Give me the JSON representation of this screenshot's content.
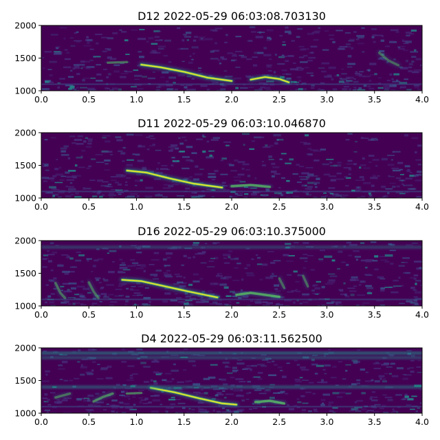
{
  "colors": {
    "background": "#440154",
    "low": "#472d7b",
    "mid": "#3b528b",
    "teal": "#21918c",
    "green": "#5ec962",
    "yellow": "#fde725"
  },
  "chart_data": [
    {
      "type": "heatmap",
      "subtype": "spectrogram",
      "title": "D12 2022-05-29 06:03:08.703130",
      "xlim": [
        0.0,
        4.0
      ],
      "ylim": [
        1000,
        2000
      ],
      "x_ticks": [
        "0.0",
        "0.5",
        "1.0",
        "1.5",
        "2.0",
        "2.5",
        "3.0",
        "3.5",
        "4.0"
      ],
      "y_ticks": [
        "1000",
        "1500",
        "2000"
      ],
      "colormap": "viridis",
      "features": [
        {
          "kind": "sweep",
          "points": [
            [
              1.05,
              1400
            ],
            [
              1.25,
              1360
            ],
            [
              1.5,
              1290
            ],
            [
              1.75,
              1200
            ],
            [
              2.0,
              1150
            ]
          ],
          "intensity": 0.95
        },
        {
          "kind": "sweep",
          "points": [
            [
              2.2,
              1170
            ],
            [
              2.35,
              1210
            ],
            [
              2.5,
              1180
            ],
            [
              2.6,
              1130
            ]
          ],
          "intensity": 0.9
        },
        {
          "kind": "sweep",
          "points": [
            [
              0.7,
              1430
            ],
            [
              0.9,
              1440
            ]
          ],
          "intensity": 0.5
        },
        {
          "kind": "sweep",
          "points": [
            [
              3.55,
              1580
            ],
            [
              3.65,
              1460
            ],
            [
              3.75,
              1390
            ]
          ],
          "intensity": 0.45
        }
      ]
    },
    {
      "type": "heatmap",
      "subtype": "spectrogram",
      "title": "D11 2022-05-29 06:03:10.046870",
      "xlim": [
        0.0,
        4.0
      ],
      "ylim": [
        1000,
        2000
      ],
      "x_ticks": [
        "0.0",
        "0.5",
        "1.0",
        "1.5",
        "2.0",
        "2.5",
        "3.0",
        "3.5",
        "4.0"
      ],
      "y_ticks": [
        "1000",
        "1500",
        "2000"
      ],
      "colormap": "viridis",
      "features": [
        {
          "kind": "sweep",
          "points": [
            [
              0.9,
              1420
            ],
            [
              1.1,
              1390
            ],
            [
              1.35,
              1300
            ],
            [
              1.6,
              1220
            ],
            [
              1.9,
              1160
            ]
          ],
          "intensity": 0.95
        },
        {
          "kind": "sweep",
          "points": [
            [
              2.0,
              1180
            ],
            [
              2.2,
              1200
            ],
            [
              2.4,
              1170
            ]
          ],
          "intensity": 0.75
        }
      ]
    },
    {
      "type": "heatmap",
      "subtype": "spectrogram",
      "title": "D16 2022-05-29 06:03:10.375000",
      "xlim": [
        0.0,
        4.0
      ],
      "ylim": [
        1000,
        2000
      ],
      "x_ticks": [
        "0.0",
        "0.5",
        "1.0",
        "1.5",
        "2.0",
        "2.5",
        "3.0",
        "3.5",
        "4.0"
      ],
      "y_ticks": [
        "1000",
        "1500",
        "2000"
      ],
      "colormap": "viridis",
      "features": [
        {
          "kind": "sweep",
          "points": [
            [
              0.85,
              1400
            ],
            [
              1.05,
              1380
            ],
            [
              1.3,
              1300
            ],
            [
              1.55,
              1220
            ],
            [
              1.85,
              1130
            ]
          ],
          "intensity": 0.95
        },
        {
          "kind": "sweep",
          "points": [
            [
              2.05,
              1170
            ],
            [
              2.2,
              1200
            ],
            [
              2.35,
              1170
            ],
            [
              2.5,
              1140
            ]
          ],
          "intensity": 0.8
        },
        {
          "kind": "sweep",
          "points": [
            [
              0.15,
              1350
            ],
            [
              0.2,
              1200
            ],
            [
              0.25,
              1120
            ]
          ],
          "intensity": 0.5
        },
        {
          "kind": "sweep",
          "points": [
            [
              0.5,
              1360
            ],
            [
              0.55,
              1220
            ],
            [
              0.6,
              1120
            ]
          ],
          "intensity": 0.5
        },
        {
          "kind": "sweep",
          "points": [
            [
              2.5,
              1420
            ],
            [
              2.55,
              1280
            ]
          ],
          "intensity": 0.45
        },
        {
          "kind": "sweep",
          "points": [
            [
              2.75,
              1460
            ],
            [
              2.8,
              1300
            ]
          ],
          "intensity": 0.45
        },
        {
          "kind": "band",
          "y": 1900,
          "intensity": 0.35
        }
      ]
    },
    {
      "type": "heatmap",
      "subtype": "spectrogram",
      "title": "D4 2022-05-29 06:03:11.562500",
      "xlim": [
        0.0,
        4.0
      ],
      "ylim": [
        1000,
        2000
      ],
      "x_ticks": [
        "0.0",
        "0.5",
        "1.0",
        "1.5",
        "2.0",
        "2.5",
        "3.0",
        "3.5",
        "4.0"
      ],
      "y_ticks": [
        "1000",
        "1500",
        "2000"
      ],
      "colormap": "viridis",
      "features": [
        {
          "kind": "sweep",
          "points": [
            [
              1.15,
              1390
            ],
            [
              1.4,
              1320
            ],
            [
              1.65,
              1230
            ],
            [
              1.9,
              1150
            ],
            [
              2.05,
              1130
            ]
          ],
          "intensity": 0.95
        },
        {
          "kind": "sweep",
          "points": [
            [
              2.25,
              1170
            ],
            [
              2.4,
              1190
            ],
            [
              2.55,
              1150
            ]
          ],
          "intensity": 0.8
        },
        {
          "kind": "sweep",
          "points": [
            [
              0.55,
              1180
            ],
            [
              0.65,
              1250
            ],
            [
              0.75,
              1300
            ]
          ],
          "intensity": 0.6
        },
        {
          "kind": "sweep",
          "points": [
            [
              0.9,
              1300
            ],
            [
              1.05,
              1310
            ]
          ],
          "intensity": 0.55
        },
        {
          "kind": "sweep",
          "points": [
            [
              0.15,
              1240
            ],
            [
              0.3,
              1300
            ]
          ],
          "intensity": 0.5
        },
        {
          "kind": "band",
          "y": 1920,
          "intensity": 0.55
        },
        {
          "kind": "band",
          "y": 1850,
          "intensity": 0.4
        },
        {
          "kind": "band",
          "y": 1400,
          "intensity": 0.45
        }
      ]
    }
  ]
}
